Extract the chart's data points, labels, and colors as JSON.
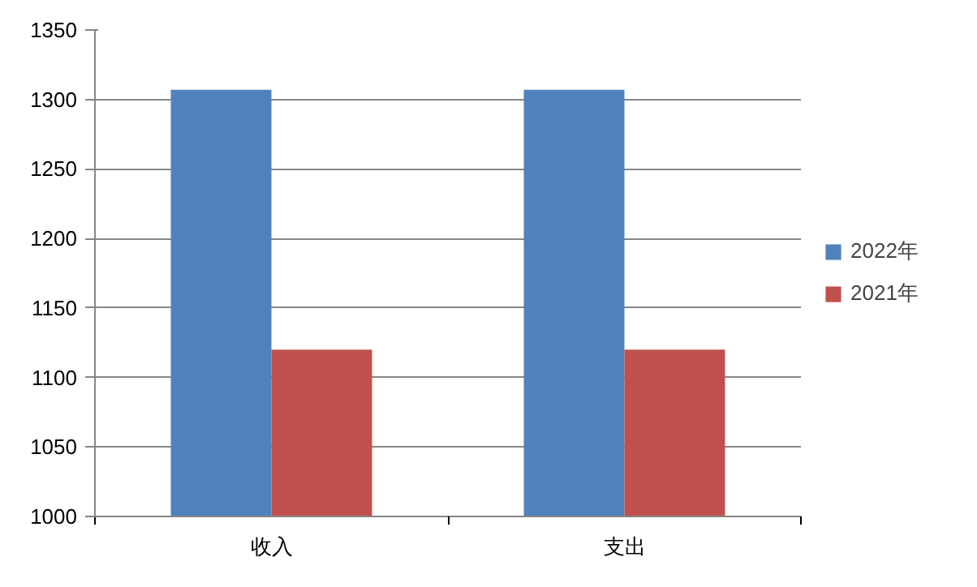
{
  "chart_data": {
    "type": "bar",
    "categories": [
      "收入",
      "支出"
    ],
    "series": [
      {
        "name": "2022年",
        "color": "#4f81bd",
        "values": [
          1307,
          1307
        ]
      },
      {
        "name": "2021年",
        "color": "#c0504d",
        "values": [
          1120,
          1120
        ]
      }
    ],
    "ylim": [
      1000,
      1350
    ],
    "yticks": [
      1000,
      1050,
      1100,
      1150,
      1200,
      1250,
      1300,
      1350
    ],
    "grid": "y",
    "legend": "right"
  }
}
